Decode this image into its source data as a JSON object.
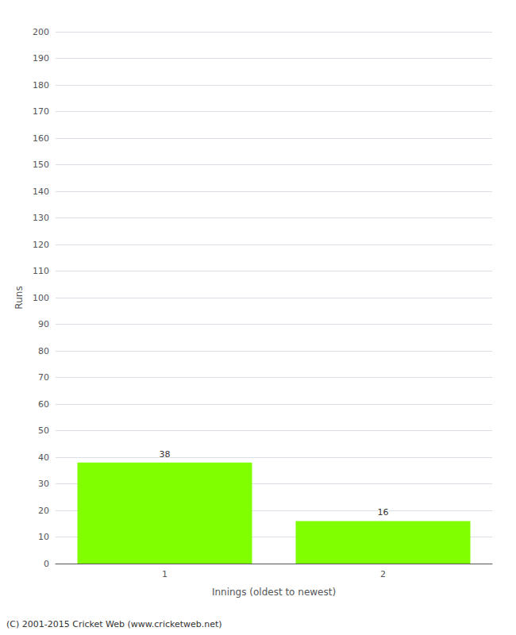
{
  "chart_data": {
    "type": "bar",
    "categories": [
      "1",
      "2"
    ],
    "values": [
      38,
      16
    ],
    "color": "#7fff00",
    "xlabel": "Innings (oldest to newest)",
    "ylabel": "Runs",
    "ylim": [
      0,
      200
    ],
    "yticks": [
      0,
      10,
      20,
      30,
      40,
      50,
      60,
      70,
      80,
      90,
      100,
      110,
      120,
      130,
      140,
      150,
      160,
      170,
      180,
      190,
      200
    ],
    "grid": true,
    "data_labels": true,
    "footer": "(C) 2001-2015 Cricket Web (www.cricketweb.net)"
  }
}
